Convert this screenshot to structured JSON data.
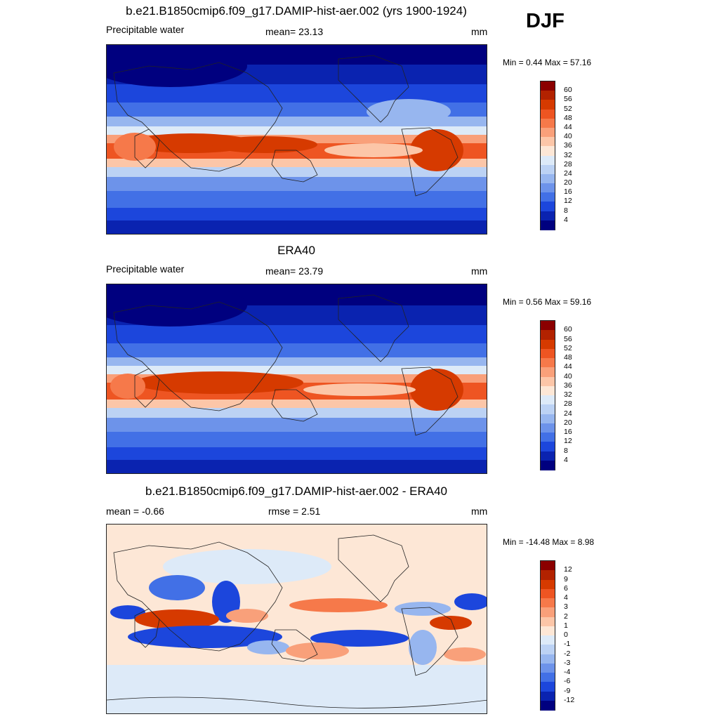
{
  "season": "DJF",
  "panels": [
    {
      "id": "model",
      "title": "b.e21.B1850cmip6.f09_g17.DAMIP-hist-aer.002 (yrs 1900-1924)",
      "left_label": "Precipitable water",
      "center_label": "mean=  23.13",
      "right_label": "mm",
      "minmax": "Min =   0.44 Max =  57.16",
      "colorbar_labels": [
        "60",
        "56",
        "52",
        "48",
        "44",
        "40",
        "36",
        "32",
        "28",
        "24",
        "20",
        "16",
        "12",
        "8",
        "4"
      ]
    },
    {
      "id": "obs",
      "title": "ERA40",
      "left_label": "Precipitable water",
      "center_label": "mean=  23.79",
      "right_label": "mm",
      "minmax": "Min =   0.56 Max =  59.16",
      "colorbar_labels": [
        "60",
        "56",
        "52",
        "48",
        "44",
        "40",
        "36",
        "32",
        "28",
        "24",
        "20",
        "16",
        "12",
        "8",
        "4"
      ]
    },
    {
      "id": "diff",
      "title": "b.e21.B1850cmip6.f09_g17.DAMIP-hist-aer.002 - ERA40",
      "left_label": "mean =  -0.66",
      "center_label": "rmse =   2.51",
      "right_label": "mm",
      "minmax": "Min = -14.48 Max =   8.98",
      "colorbar_labels": [
        "12",
        "9",
        "6",
        "4",
        "3",
        "2",
        "1",
        "0",
        "-1",
        "-2",
        "-3",
        "-4",
        "-6",
        "-9",
        "-12"
      ]
    }
  ],
  "colormaps": {
    "sequential": [
      "#8b0000",
      "#b22200",
      "#d63a00",
      "#ee5522",
      "#f6794a",
      "#f9a07a",
      "#fcc6a8",
      "#fde7d6",
      "#ddeaf8",
      "#bcd2f4",
      "#97b6ef",
      "#6d93ea",
      "#4270e6",
      "#1c46dc",
      "#0a23b0",
      "#00007f"
    ],
    "diverging": [
      "#8b0000",
      "#b22200",
      "#d63a00",
      "#ee5522",
      "#f6794a",
      "#f9a07a",
      "#fcc6a8",
      "#fde7d6",
      "#ddeaf8",
      "#bcd2f4",
      "#97b6ef",
      "#6d93ea",
      "#4270e6",
      "#1c46dc",
      "#0a23b0",
      "#00007f"
    ]
  }
}
